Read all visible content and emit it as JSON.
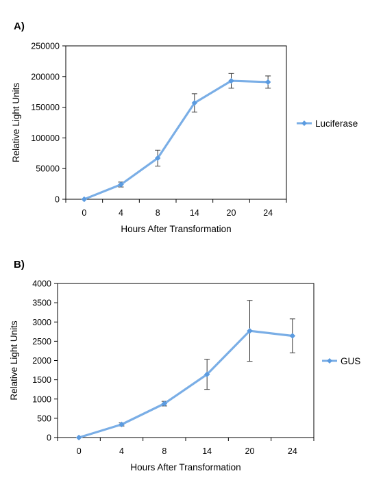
{
  "panels": [
    {
      "label": "A)"
    },
    {
      "label": "B)"
    }
  ],
  "colors": {
    "line": "#7aaee6",
    "marker": "#5b9be0",
    "error_bar": "#333333",
    "frame": "#000000"
  },
  "chart_data": [
    {
      "type": "line",
      "title": "",
      "xlabel": "Hours After Transformation",
      "ylabel": "Relative Light Units",
      "categories": [
        "0",
        "4",
        "8",
        "14",
        "20",
        "24"
      ],
      "yticks": [
        "0",
        "50000",
        "100000",
        "150000",
        "200000",
        "250000"
      ],
      "ylim": [
        0,
        250000
      ],
      "series": [
        {
          "name": "Luciferase",
          "values": [
            0,
            24000,
            67000,
            157000,
            193000,
            191000
          ],
          "errors": [
            0,
            4000,
            13000,
            15000,
            12000,
            10000
          ]
        }
      ],
      "legend": "right",
      "grid": false
    },
    {
      "type": "line",
      "title": "",
      "xlabel": "Hours After Transformation",
      "ylabel": "Relative Light Units",
      "categories": [
        "0",
        "4",
        "8",
        "14",
        "20",
        "24"
      ],
      "yticks": [
        "0",
        "500",
        "1000",
        "1500",
        "2000",
        "2500",
        "3000",
        "3500",
        "4000"
      ],
      "ylim": [
        0,
        4000
      ],
      "series": [
        {
          "name": "GUS",
          "values": [
            0,
            340,
            880,
            1640,
            2770,
            2640
          ],
          "errors": [
            0,
            40,
            60,
            390,
            790,
            440
          ]
        }
      ],
      "legend": "right",
      "grid": false
    }
  ]
}
